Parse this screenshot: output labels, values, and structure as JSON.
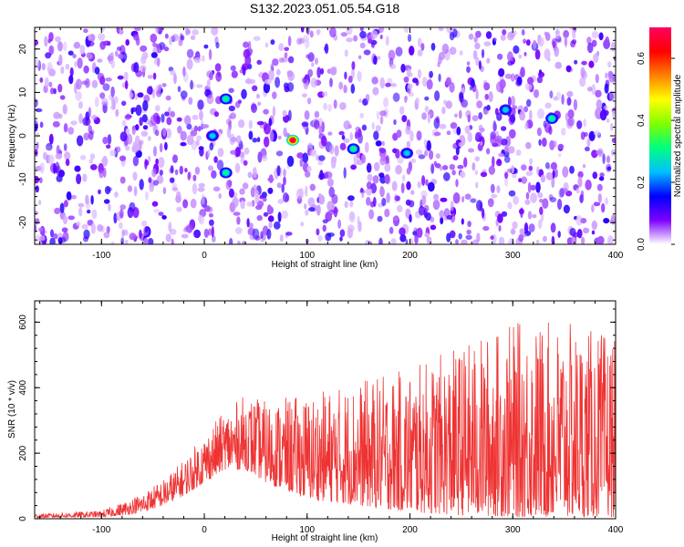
{
  "title": "S132.2023.051.05.54.G18",
  "chart_data": [
    {
      "type": "heatmap",
      "xlabel": "Height of straight line (km)",
      "ylabel": "Frequency (Hz)",
      "xlim": [
        -165,
        400
      ],
      "ylim": [
        -25,
        25
      ],
      "x_ticks": [
        -100,
        0,
        100,
        200,
        300,
        400
      ],
      "y_ticks": [
        -20,
        -10,
        0,
        10,
        20
      ],
      "colorbar": {
        "label": "Normalized spectral amplitude",
        "range": [
          0,
          0.7
        ],
        "ticks": [
          0.0,
          0.2,
          0.4,
          0.6
        ],
        "tick_labels": [
          "0.0",
          "0.2",
          "0.4",
          "0.6"
        ],
        "colors": [
          "#ffffff",
          "#7c00ff",
          "#0000ff",
          "#00c0ff",
          "#00ff80",
          "#80ff00",
          "#ffff00",
          "#ff8000",
          "#ff0000",
          "#ff0060"
        ]
      },
      "gaps_x": [
        20,
        88
      ],
      "hotspots": [
        {
          "x": 86,
          "y": -1,
          "amp": 0.68
        },
        {
          "x": 21,
          "y": 8.5,
          "amp": 0.3
        },
        {
          "x": 21,
          "y": -8.5,
          "amp": 0.3
        },
        {
          "x": 145,
          "y": -3,
          "amp": 0.3
        },
        {
          "x": 197,
          "y": -4,
          "amp": 0.25
        },
        {
          "x": 338,
          "y": 4,
          "amp": 0.3
        },
        {
          "x": 293,
          "y": 6,
          "amp": 0.25
        },
        {
          "x": 8,
          "y": 0,
          "amp": 0.25
        }
      ],
      "grid": false
    },
    {
      "type": "line",
      "xlabel": "Height of straight line (km)",
      "ylabel": "SNR (10 * v/v)",
      "xlim": [
        -165,
        400
      ],
      "ylim": [
        0,
        665
      ],
      "x_ticks": [
        -100,
        0,
        100,
        200,
        300,
        400
      ],
      "y_ticks": [
        0,
        200,
        400,
        600
      ],
      "color": "#ee3333",
      "envelope": {
        "x": [
          -165,
          -100,
          -80,
          -60,
          -40,
          -20,
          0,
          20,
          40,
          60,
          100,
          150,
          200,
          250,
          300,
          350,
          400
        ],
        "base": [
          3,
          5,
          10,
          20,
          40,
          70,
          110,
          150,
          150,
          110,
          60,
          40,
          20,
          10,
          5,
          5,
          5
        ],
        "peak": [
          15,
          25,
          50,
          80,
          120,
          180,
          260,
          330,
          380,
          360,
          380,
          420,
          460,
          530,
          600,
          600,
          560
        ]
      },
      "grid": false
    }
  ]
}
